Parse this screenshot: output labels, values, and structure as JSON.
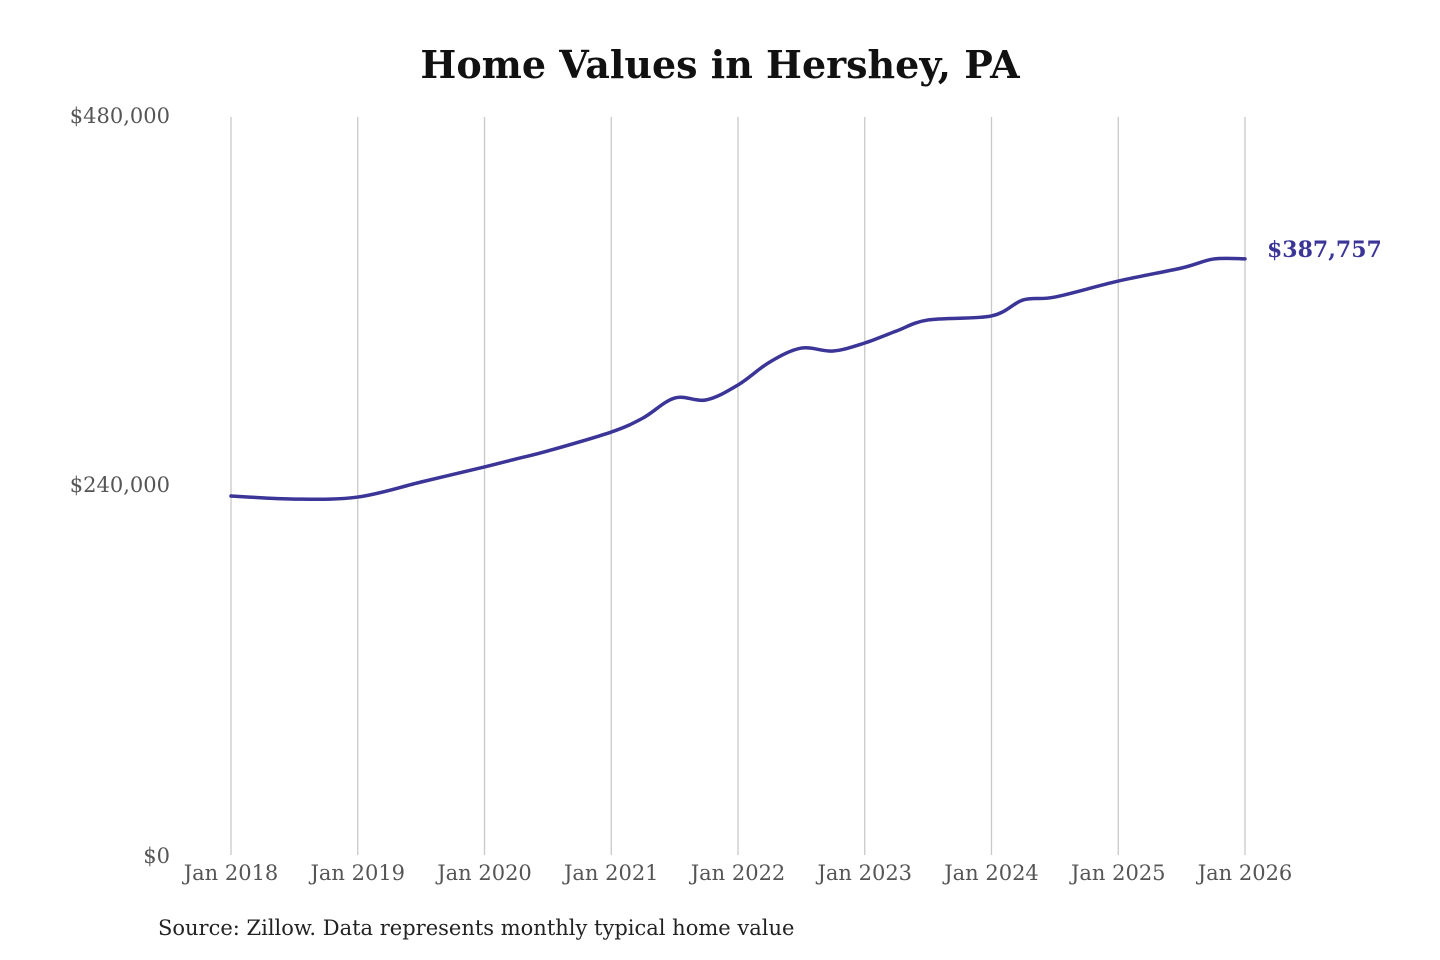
{
  "chart_data": {
    "type": "line",
    "title": "Home Values in Hershey, PA",
    "xlabel": "",
    "ylabel": "",
    "ylim": [
      0,
      480000
    ],
    "yticks": [
      0,
      240000,
      480000
    ],
    "ytick_labels": [
      "$0",
      "$240,000",
      "$480,000"
    ],
    "xticks": [
      "2018-01",
      "2019-01",
      "2020-01",
      "2021-01",
      "2022-01",
      "2023-01",
      "2024-01",
      "2025-01",
      "2026-01"
    ],
    "xtick_labels": [
      "Jan 2018",
      "Jan 2019",
      "Jan 2020",
      "Jan 2021",
      "Jan 2022",
      "Jan 2023",
      "Jan 2024",
      "Jan 2025",
      "Jan 2026"
    ],
    "grid": "vertical",
    "line_color": "#3a3596",
    "series": [
      {
        "x": [
          "2018-01",
          "2018-07",
          "2019-01",
          "2019-07",
          "2020-01",
          "2020-04",
          "2020-07",
          "2021-01",
          "2021-04",
          "2021-07",
          "2021-10",
          "2022-01",
          "2022-04",
          "2022-07",
          "2022-10",
          "2023-01",
          "2023-04",
          "2023-07",
          "2024-01",
          "2024-04",
          "2024-07",
          "2025-01",
          "2025-07",
          "2025-10",
          "2026-01"
        ],
        "values": [
          233500,
          231500,
          232800,
          242600,
          252400,
          257600,
          262800,
          275100,
          284200,
          297200,
          296000,
          305700,
          320600,
          329700,
          327800,
          333000,
          340800,
          348000,
          350600,
          361000,
          362900,
          373300,
          381800,
          387600,
          387757
        ]
      }
    ],
    "end_label": "$387,757",
    "source": "Source: Zillow. Data represents monthly typical home value"
  }
}
